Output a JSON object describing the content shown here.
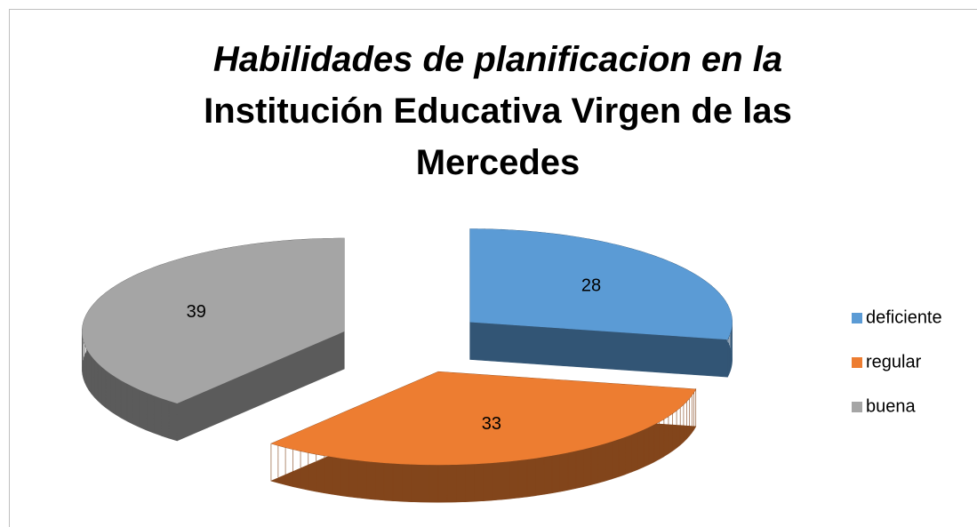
{
  "chart_data": {
    "type": "pie3d",
    "title": [
      "Habilidades de planificacion en la",
      "Institución Educativa Virgen de las Mercedes"
    ],
    "categories": [
      "deficiente",
      "regular",
      "buena"
    ],
    "values": [
      28,
      33,
      39
    ],
    "colors": [
      "#5b9bd5",
      "#ed7d31",
      "#a5a5a5"
    ],
    "legend": "right"
  }
}
